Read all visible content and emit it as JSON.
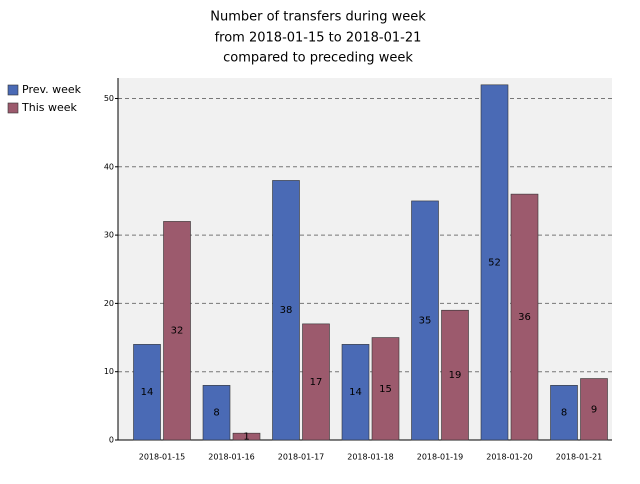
{
  "chart_data": {
    "type": "bar",
    "title": [
      "Number of transfers during week",
      "from 2018-01-15 to 2018-01-21",
      "compared to preceding week"
    ],
    "categories": [
      "2018-01-15",
      "2018-01-16",
      "2018-01-17",
      "2018-01-18",
      "2018-01-19",
      "2018-01-20",
      "2018-01-21"
    ],
    "series": [
      {
        "name": "Prev. week",
        "color": "#4a6ab5",
        "values": [
          14,
          8,
          38,
          14,
          35,
          52,
          8
        ]
      },
      {
        "name": "This week",
        "color": "#9c5a6d",
        "values": [
          32,
          1,
          17,
          15,
          19,
          36,
          9
        ]
      }
    ],
    "ylim": [
      0,
      53
    ],
    "yticks": [
      0,
      10,
      20,
      30,
      40,
      50
    ],
    "grid": true,
    "legend": "left"
  }
}
